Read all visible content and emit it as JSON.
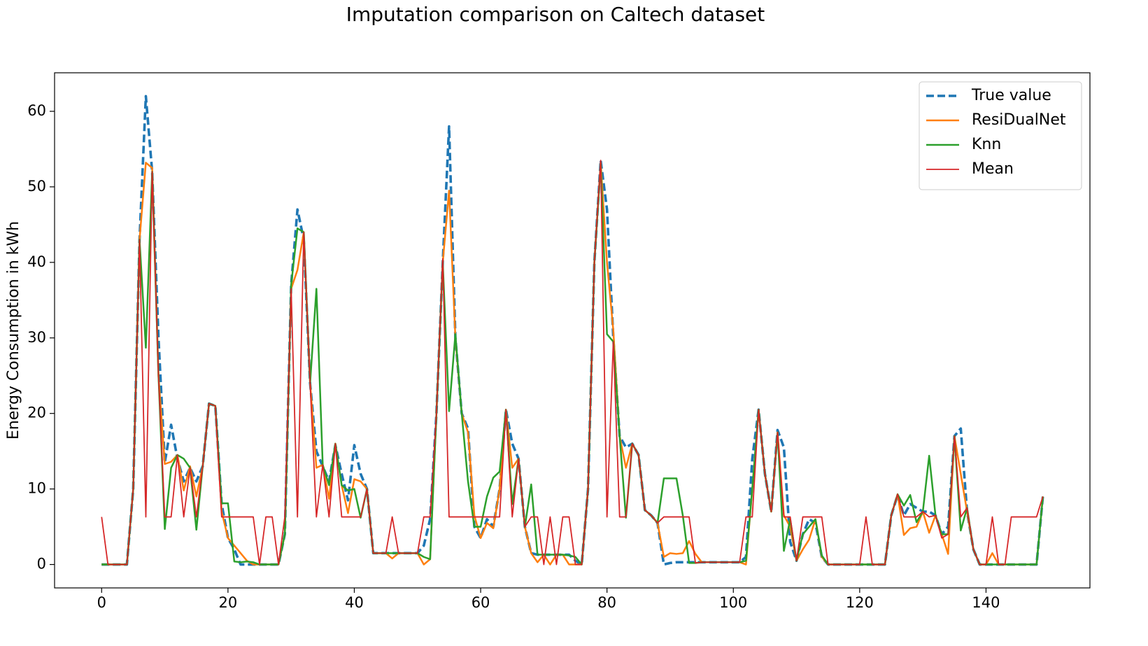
{
  "chart_data": {
    "type": "line",
    "title": "Imputation comparison on Caltech dataset",
    "y_label": "Energy Consumption in kWh",
    "xlim": [
      -7.45,
      156.45
    ],
    "ylim": [
      -3.1,
      65.1
    ],
    "xticks": [
      0,
      20,
      40,
      60,
      80,
      100,
      120,
      140
    ],
    "yticks": [
      0,
      10,
      20,
      30,
      40,
      50,
      60
    ],
    "grid": false,
    "legend": "upper right",
    "x": [
      0,
      1,
      2,
      3,
      4,
      5,
      6,
      7,
      8,
      9,
      10,
      11,
      12,
      13,
      14,
      15,
      16,
      17,
      18,
      19,
      20,
      21,
      22,
      23,
      24,
      25,
      26,
      27,
      28,
      29,
      30,
      31,
      32,
      33,
      34,
      35,
      36,
      37,
      38,
      39,
      40,
      41,
      42,
      43,
      44,
      45,
      46,
      47,
      48,
      49,
      50,
      51,
      52,
      53,
      54,
      55,
      56,
      57,
      58,
      59,
      60,
      61,
      62,
      63,
      64,
      65,
      66,
      67,
      68,
      69,
      70,
      71,
      72,
      73,
      74,
      75,
      76,
      77,
      78,
      79,
      80,
      81,
      82,
      83,
      84,
      85,
      86,
      87,
      88,
      89,
      90,
      91,
      92,
      93,
      94,
      95,
      96,
      97,
      98,
      99,
      100,
      101,
      102,
      103,
      104,
      105,
      106,
      107,
      108,
      109,
      110,
      111,
      112,
      113,
      114,
      115,
      116,
      117,
      118,
      119,
      120,
      121,
      122,
      123,
      124,
      125,
      126,
      127,
      128,
      129,
      130,
      131,
      132,
      133,
      134,
      135,
      136,
      137,
      138,
      139,
      140,
      141,
      142,
      143,
      144,
      145,
      146,
      147,
      148,
      149
    ],
    "series": [
      {
        "name": "True value",
        "color": "#1f77b4",
        "linestyle": "dashed",
        "values": [
          0,
          0,
          0,
          0,
          0,
          10,
          43,
          62,
          52,
          30,
          13.5,
          18.5,
          14,
          11,
          12.8,
          11,
          13,
          21.3,
          21,
          8,
          3.5,
          2,
          0,
          0,
          0,
          0,
          0,
          0,
          0,
          4,
          37,
          47,
          43,
          24,
          15,
          13,
          11,
          15.8,
          12,
          8.5,
          15.8,
          12,
          10,
          1.5,
          1.5,
          1.5,
          1.5,
          1.5,
          1.5,
          1.5,
          1.5,
          2.5,
          6,
          20,
          40,
          58,
          30,
          20,
          18,
          5,
          3.5,
          6,
          5,
          10,
          20.5,
          16,
          14,
          5,
          1.5,
          1.3,
          1.3,
          1.3,
          1.3,
          1.3,
          1.3,
          0.5,
          0,
          10,
          40,
          53.5,
          47,
          30,
          17,
          15.5,
          16,
          14.5,
          7.2,
          6.5,
          5.5,
          0,
          0.2,
          0.3,
          0.3,
          0.3,
          0.3,
          0.3,
          0.3,
          0.3,
          0.3,
          0.3,
          0.3,
          0.3,
          1,
          14,
          20.5,
          12,
          7,
          17.8,
          15.5,
          3,
          0.5,
          4,
          6,
          5.5,
          1,
          0,
          0,
          0,
          0,
          0,
          0,
          0,
          0,
          0,
          0,
          6.5,
          9.2,
          6.5,
          8,
          7.5,
          7,
          7,
          6.5,
          4,
          5,
          17,
          18,
          7,
          2,
          0,
          0,
          0,
          0,
          0,
          0,
          0,
          0,
          0,
          0,
          9
        ]
      },
      {
        "name": "ResiDualNet",
        "color": "#ff7f0e",
        "linestyle": "solid",
        "values": [
          0,
          0,
          0,
          0,
          0,
          10,
          43,
          53.2,
          52.5,
          25,
          13.3,
          13.6,
          14.5,
          9.8,
          13,
          9,
          13,
          21.3,
          21,
          7,
          3.5,
          2.5,
          1.5,
          0.5,
          0,
          0,
          0,
          0,
          0,
          4,
          36.5,
          39,
          44,
          24,
          12.8,
          13.2,
          8.7,
          16,
          10.5,
          6.8,
          11.3,
          11,
          10,
          1.5,
          1.5,
          1.5,
          0.8,
          1.5,
          1.5,
          1.5,
          1.5,
          0,
          0.7,
          20,
          40,
          49.5,
          30,
          20,
          17.5,
          6.5,
          3.5,
          5.5,
          4.8,
          10,
          20.5,
          12.8,
          14,
          5,
          1.5,
          0.3,
          1.3,
          0,
          1.3,
          1.3,
          0,
          0,
          0,
          10,
          40,
          53.2,
          40,
          31,
          17,
          12.8,
          16,
          14.5,
          7.2,
          6.5,
          5.5,
          1,
          1.5,
          1.4,
          1.5,
          3.1,
          1.4,
          0.3,
          0.3,
          0.3,
          0.3,
          0.3,
          0.3,
          0.3,
          0,
          10,
          20.5,
          12,
          7,
          17.5,
          6.5,
          5,
          0.5,
          2,
          3.3,
          6,
          1,
          0,
          0,
          0,
          0,
          0,
          0,
          0,
          0,
          0,
          0,
          6.5,
          9.3,
          3.9,
          4.8,
          5,
          7,
          4.2,
          6.5,
          4,
          1.4,
          17,
          12,
          7,
          2,
          0,
          0,
          1.5,
          0,
          0,
          0,
          0,
          0,
          0,
          0,
          9
        ]
      },
      {
        "name": "Knn",
        "color": "#2ca02c",
        "linestyle": "solid",
        "values": [
          0,
          0,
          0,
          0,
          0,
          10,
          43,
          28.7,
          52,
          25,
          4.7,
          12.8,
          14.5,
          14,
          12.8,
          4.6,
          13,
          21.3,
          21,
          8.1,
          8.1,
          0.4,
          0.3,
          0.4,
          0.3,
          0,
          0,
          0,
          0,
          4,
          37,
          44.5,
          44,
          24,
          36.5,
          13.2,
          10.5,
          16,
          10.5,
          9.8,
          10,
          6.2,
          10,
          1.5,
          1.5,
          1.5,
          1.5,
          1.5,
          1.5,
          1.5,
          1.5,
          1,
          0.7,
          20,
          40,
          20.3,
          30.5,
          20,
          11,
          5,
          5,
          9,
          11.5,
          12.3,
          20.5,
          8,
          14,
          5,
          10.6,
          1.3,
          1.3,
          1.3,
          1.3,
          1.3,
          1.2,
          1,
          0,
          10,
          40,
          53,
          30.5,
          29.5,
          17,
          6.2,
          16,
          14.5,
          7.2,
          6.5,
          5.5,
          11.4,
          11.4,
          11.4,
          6.5,
          0.2,
          0.2,
          0.3,
          0.3,
          0.3,
          0.3,
          0.3,
          0.3,
          0.3,
          0.5,
          10,
          20.5,
          12,
          7,
          17.5,
          1.8,
          6,
          0.5,
          4,
          5,
          6,
          1.2,
          0,
          0,
          0,
          0,
          0,
          0,
          0,
          0,
          0,
          0,
          6.5,
          9.3,
          7.8,
          9.2,
          5.6,
          7,
          14.4,
          6.5,
          4,
          4,
          17,
          4.5,
          7.5,
          2,
          0,
          0,
          0,
          0,
          0,
          0,
          0,
          0,
          0,
          0,
          9
        ]
      },
      {
        "name": "Mean",
        "color": "#d62728",
        "linestyle": "thin",
        "values": [
          6.3,
          0,
          0,
          0,
          0,
          10,
          43,
          6.3,
          52,
          25,
          6.3,
          6.3,
          14.5,
          6.3,
          12.8,
          6.3,
          13,
          21.3,
          21,
          6.3,
          6.3,
          6.3,
          6.3,
          6.3,
          6.3,
          0,
          6.3,
          6.3,
          0,
          6.3,
          36.5,
          6.3,
          44,
          24,
          6.3,
          13.2,
          6.3,
          16,
          6.3,
          6.3,
          6.3,
          6.3,
          10,
          1.5,
          1.5,
          1.5,
          6.3,
          1.5,
          1.5,
          1.5,
          1.5,
          6.3,
          6.3,
          20,
          40.5,
          6.3,
          6.3,
          6.3,
          6.3,
          6.3,
          6.3,
          6.3,
          6.3,
          6.3,
          20.5,
          6.3,
          14,
          5,
          6.3,
          6.3,
          0,
          6.3,
          0,
          6.3,
          6.3,
          0,
          0,
          10,
          40,
          53.5,
          6.3,
          29.5,
          6.3,
          6.3,
          16,
          14.5,
          7.2,
          6.5,
          5.5,
          6.3,
          6.3,
          6.3,
          6.3,
          6.3,
          0.2,
          0.3,
          0.3,
          0.3,
          0.3,
          0.3,
          0.3,
          0.3,
          6.3,
          6.3,
          20.5,
          12,
          7,
          17.5,
          6.3,
          6.3,
          0.5,
          6.3,
          6.3,
          6.3,
          6.3,
          0,
          0,
          0,
          0,
          0,
          0,
          6.3,
          0,
          0,
          0,
          6.5,
          9.3,
          6.3,
          6.3,
          6.3,
          7,
          6.3,
          6.5,
          3.5,
          4,
          17,
          6.3,
          7.5,
          2,
          0,
          0,
          6.3,
          0,
          0,
          6.3,
          6.3,
          6.3,
          6.3,
          6.3,
          9
        ]
      }
    ]
  }
}
